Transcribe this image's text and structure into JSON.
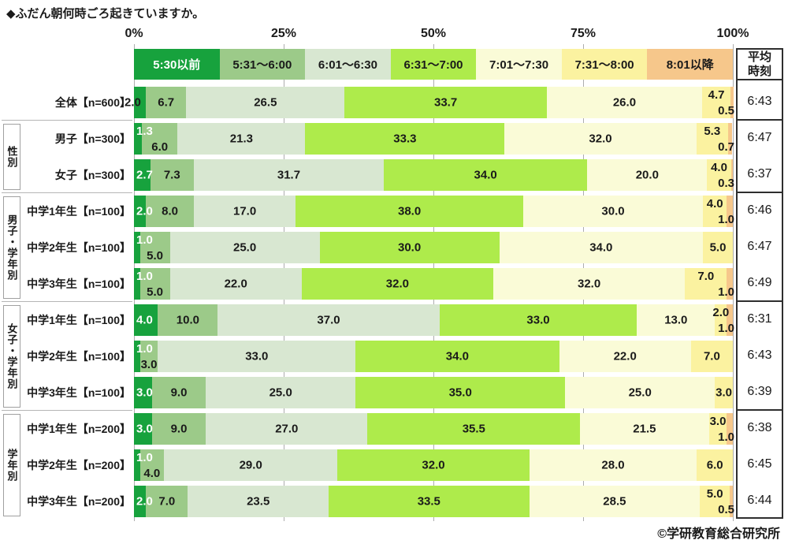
{
  "title": "◆ふだん朝何時ごろ起きていますか。",
  "copyright": "©学研教育総合研究所",
  "ui": {
    "avg_header_lines": [
      "平均",
      "時刻"
    ],
    "palette": [
      "#17A23D",
      "#9CCA89",
      "#D8E7D1",
      "#AEEB4B",
      "#FAFBD7",
      "#FBF2A0",
      "#F6C78B"
    ],
    "legend_text_colors": [
      "#ffffff",
      "#1a1a1a",
      "#1a1a1a",
      "#1a1a1a",
      "#1a1a1a",
      "#1a1a1a",
      "#1a1a1a"
    ]
  },
  "chart_data": {
    "type": "bar",
    "stacked": true,
    "orientation": "horizontal",
    "title": "◆ふだん朝何時ごろ起きていますか。",
    "x_axis": {
      "ticks": [
        "0%",
        "25%",
        "50%",
        "75%",
        "100%"
      ],
      "range": [
        0,
        100
      ],
      "unit": "%"
    },
    "legend_position": "top",
    "series_labels": [
      "5:30以前",
      "5:31～6:00",
      "6:01～6:30",
      "6:31～7:00",
      "7:01～7:30",
      "7:31～8:00",
      "8:01以降"
    ],
    "avg_column_header": "平均時刻",
    "groups": [
      {
        "label": "",
        "rows": [
          {
            "label": "全体【n=600】",
            "values": [
              2.0,
              6.7,
              26.5,
              33.7,
              26.0,
              4.7,
              0.5
            ],
            "avg": "6:43",
            "labels": [
              "O",
              "C",
              "C",
              "C",
              "C",
              "T",
              "R"
            ]
          }
        ]
      },
      {
        "label": "性別",
        "rows": [
          {
            "label": "男子【n=300】",
            "values": [
              1.3,
              6.0,
              21.3,
              33.3,
              32.0,
              5.3,
              0.7
            ],
            "avg": "6:47",
            "labels": [
              "ET",
              "B",
              "C",
              "C",
              "C",
              "T",
              "R"
            ]
          },
          {
            "label": "女子【n=300】",
            "values": [
              2.7,
              7.3,
              31.7,
              34.0,
              20.0,
              4.0,
              0.3
            ],
            "avg": "6:37",
            "labels": [
              "E",
              "C",
              "C",
              "C",
              "C",
              "T",
              "R"
            ]
          }
        ]
      },
      {
        "label": "男子・学年別",
        "rows": [
          {
            "label": "中学1年生【n=100】",
            "values": [
              2.0,
              8.0,
              17.0,
              38.0,
              30.0,
              4.0,
              1.0
            ],
            "avg": "6:46",
            "labels": [
              "E",
              "C",
              "C",
              "C",
              "C",
              "T",
              "R"
            ]
          },
          {
            "label": "中学2年生【n=100】",
            "values": [
              1.0,
              5.0,
              25.0,
              30.0,
              34.0,
              5.0,
              0
            ],
            "avg": "6:47",
            "labels": [
              "ET",
              "B",
              "C",
              "C",
              "C",
              "C",
              "-"
            ]
          },
          {
            "label": "中学3年生【n=100】",
            "values": [
              1.0,
              5.0,
              22.0,
              32.0,
              32.0,
              7.0,
              1.0
            ],
            "avg": "6:49",
            "labels": [
              "ET",
              "B",
              "C",
              "C",
              "C",
              "T",
              "R"
            ]
          }
        ]
      },
      {
        "label": "女子・学年別",
        "rows": [
          {
            "label": "中学1年生【n=100】",
            "values": [
              4.0,
              10.0,
              37.0,
              33.0,
              13.0,
              2.0,
              1.0
            ],
            "avg": "6:31",
            "labels": [
              "E",
              "C",
              "C",
              "C",
              "C",
              "T",
              "R"
            ]
          },
          {
            "label": "中学2年生【n=100】",
            "values": [
              1.0,
              3.0,
              33.0,
              34.0,
              22.0,
              7.0,
              0
            ],
            "avg": "6:43",
            "labels": [
              "ET",
              "B",
              "C",
              "C",
              "C",
              "C",
              "-"
            ]
          },
          {
            "label": "中学3年生【n=100】",
            "values": [
              3.0,
              9.0,
              25.0,
              35.0,
              25.0,
              3.0,
              0
            ],
            "avg": "6:39",
            "labels": [
              "E",
              "C",
              "C",
              "C",
              "C",
              "C",
              "-"
            ]
          }
        ]
      },
      {
        "label": "学年別",
        "rows": [
          {
            "label": "中学1年生【n=200】",
            "values": [
              3.0,
              9.0,
              27.0,
              35.5,
              21.5,
              3.0,
              1.0
            ],
            "avg": "6:38",
            "labels": [
              "E",
              "C",
              "C",
              "C",
              "C",
              "T",
              "R"
            ]
          },
          {
            "label": "中学2年生【n=200】",
            "values": [
              1.0,
              4.0,
              29.0,
              32.0,
              28.0,
              6.0,
              0
            ],
            "avg": "6:45",
            "labels": [
              "ET",
              "B",
              "C",
              "C",
              "C",
              "C",
              "-"
            ]
          },
          {
            "label": "中学3年生【n=200】",
            "values": [
              2.0,
              7.0,
              23.5,
              33.5,
              28.5,
              5.0,
              0.5
            ],
            "avg": "6:44",
            "labels": [
              "E",
              "C",
              "C",
              "C",
              "C",
              "T",
              "R"
            ]
          }
        ]
      }
    ]
  }
}
